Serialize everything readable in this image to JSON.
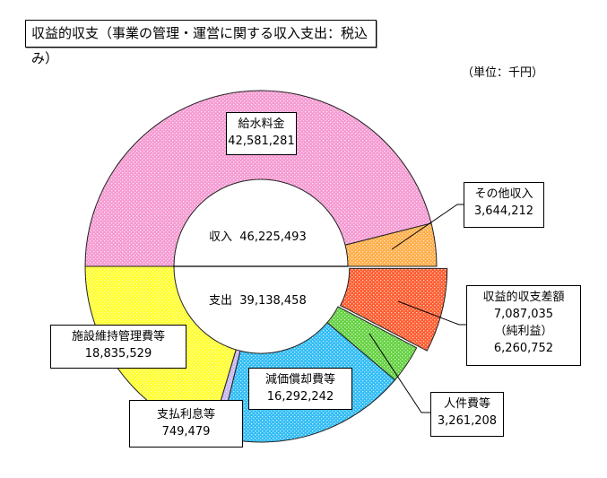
{
  "chart_data": {
    "type": "pie",
    "subtype": "double half-donut",
    "title": "収益的収支（事業の管理・運営に関する収入支出：税込み）",
    "unit": "（単位：千円）",
    "income": {
      "label": "収入",
      "total": 46225493,
      "total_text": "46,225,493",
      "slices": [
        {
          "name": "給水料金",
          "value": 42581281,
          "value_text": "42,581,281",
          "color": "#f59ad2"
        },
        {
          "name": "その他収入",
          "value": 3644212,
          "value_text": "3,644,212",
          "color": "#ffad47"
        }
      ]
    },
    "expense": {
      "label": "支出",
      "total": 39138458,
      "total_text": "39,138,458",
      "slices": [
        {
          "name": "収益的収支差額",
          "value": 7087035,
          "value_text": "7,087,035",
          "sub_label": "（純利益）",
          "sub_value": 6260752,
          "sub_value_text": "6,260,752",
          "color": "#ff5b2e",
          "exploded": true
        },
        {
          "name": "人件費等",
          "value": 3261208,
          "value_text": "3,261,208",
          "color": "#63d13f"
        },
        {
          "name": "減価償却費等",
          "value": 16292242,
          "value_text": "16,292,242",
          "color": "#2fbcf5"
        },
        {
          "name": "支払利息等",
          "value": 749479,
          "value_text": "749,479",
          "color": "#c8b4f0"
        },
        {
          "name": "施設維持管理費等",
          "value": 18835529,
          "value_text": "18,835,529",
          "color": "#ffff2e"
        }
      ]
    }
  }
}
